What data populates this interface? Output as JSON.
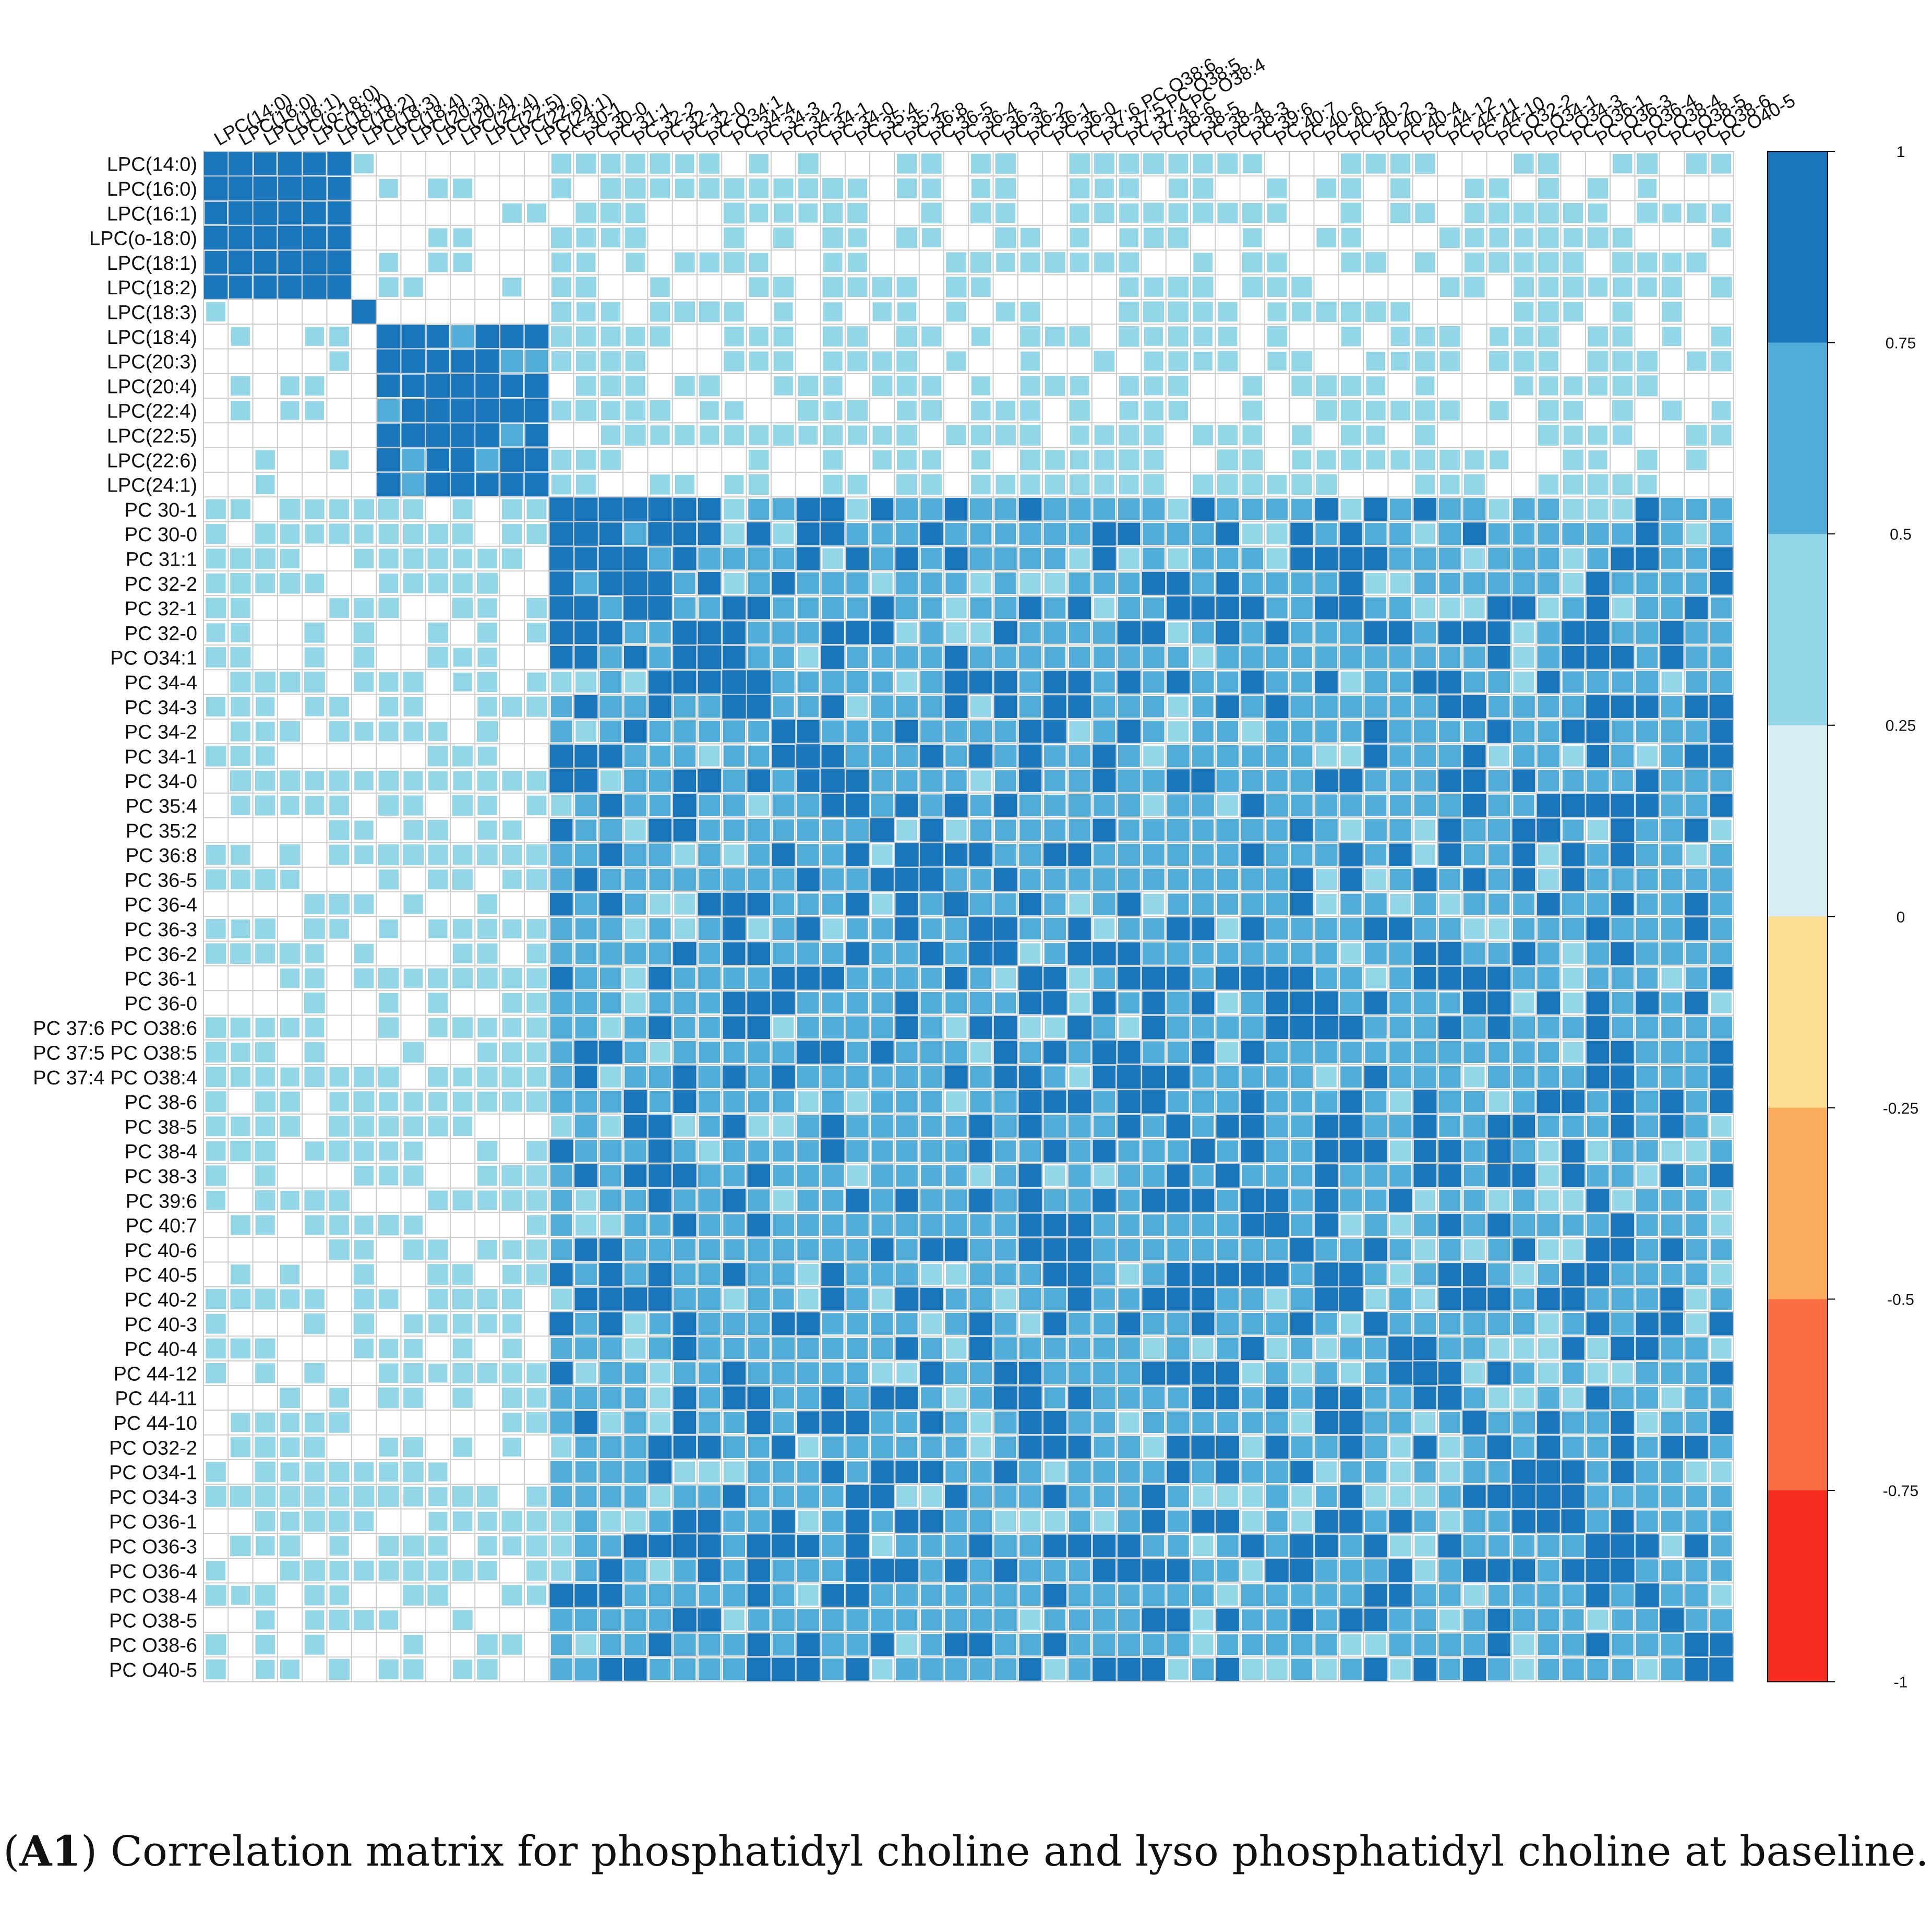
{
  "chart_data": {
    "type": "heatmap",
    "title": "",
    "xlabel": "",
    "ylabel": "",
    "labels": [
      "LPC(14:0)",
      "LPC(16:0)",
      "LPC(16:1)",
      "LPC(o-18:0)",
      "LPC(18:1)",
      "LPC(18:2)",
      "LPC(18:3)",
      "LPC(18:4)",
      "LPC(20:3)",
      "LPC(20:4)",
      "LPC(22:4)",
      "LPC(22:5)",
      "LPC(22:6)",
      "LPC(24:1)",
      "PC 30-1",
      "PC 30-0",
      "PC 31:1",
      "PC 32-2",
      "PC 32-1",
      "PC 32-0",
      "PC O34:1",
      "PC 34-4",
      "PC 34-3",
      "PC 34-2",
      "PC 34-1",
      "PC 34-0",
      "PC 35:4",
      "PC 35:2",
      "PC 36:8",
      "PC 36-5",
      "PC 36-4",
      "PC 36-3",
      "PC 36-2",
      "PC 36-1",
      "PC 36-0",
      "PC 37:6 PC O38:6",
      "PC 37:5 PC O38:5",
      "PC 37:4 PC O38:4",
      "PC 38-6",
      "PC 38-5",
      "PC 38-4",
      "PC 38-3",
      "PC 39:6",
      "PC 40:7",
      "PC 40-6",
      "PC 40-5",
      "PC 40-2",
      "PC 40-3",
      "PC 40-4",
      "PC 44-12",
      "PC 44-11",
      "PC 44-10",
      "PC O32-2",
      "PC O34-1",
      "PC O34-3",
      "PC O36-1",
      "PC O36-3",
      "PC O36-4",
      "PC O38-4",
      "PC O38-5",
      "PC O38-6",
      "PC O40-5"
    ],
    "groups": [
      {
        "name": "LPC",
        "start": 0,
        "end": 13
      },
      {
        "name": "PC",
        "start": 14,
        "end": 61
      }
    ],
    "block_correlations": {
      "lpc_block_1": {
        "range": [
          0,
          5
        ],
        "within": 0.9
      },
      "lpc_block_2": {
        "range": [
          7,
          13
        ],
        "within": 0.9
      },
      "lpc_lpc_cross": 0.18,
      "lpc_pc": 0.3,
      "pc_pc": 0.66,
      "pc_block_1": {
        "range": [
          14,
          18
        ],
        "within": 0.85
      },
      "pc_block_2": {
        "range": [
          21,
          22
        ],
        "within": 0.85
      }
    },
    "colorbar": {
      "ticks": [
        "1",
        "0.75",
        "0.5",
        "0.25",
        "0",
        "-0.25",
        "-0.5",
        "-0.75",
        "-1"
      ],
      "range": [
        -1,
        1
      ],
      "colors": [
        "#1a76ba",
        "#51acd7",
        "#92d6e8",
        "#d7edf2",
        "#fddd92",
        "#fcac5d",
        "#fb6e42",
        "#f82c20"
      ]
    }
  },
  "caption": {
    "label": "A1",
    "text": " Correlation matrix for phosphatidyl choline and lyso phosphatidyl choline at baseline."
  }
}
